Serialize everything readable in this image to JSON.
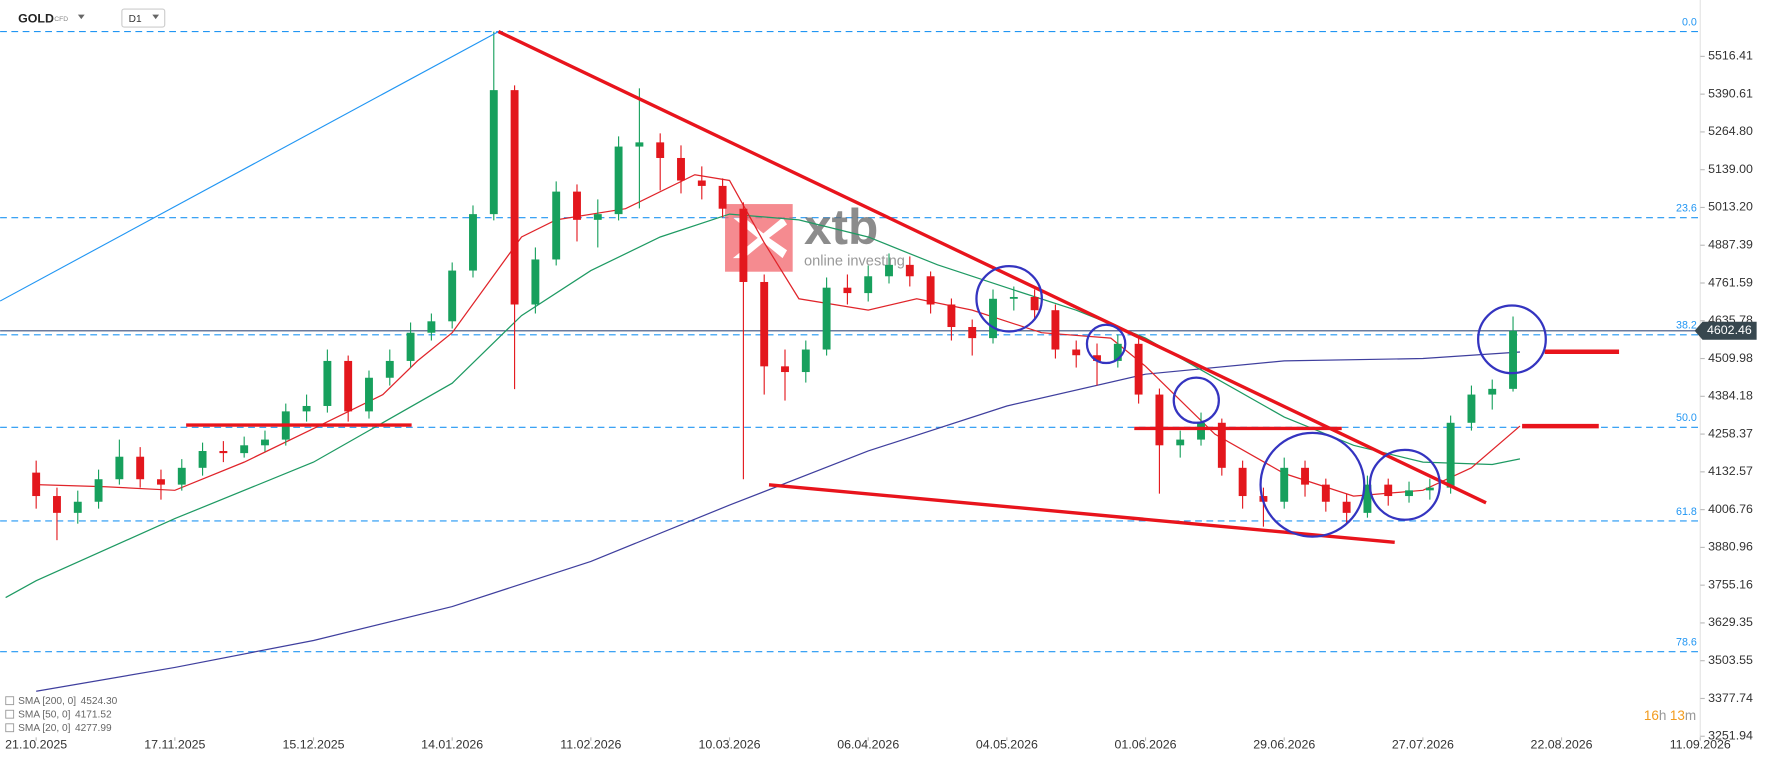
{
  "toolbar": {
    "symbol": "GOLD",
    "badge": "CFD",
    "interval": "D1"
  },
  "watermark": {
    "brand": "xtb",
    "tagline": "online investing"
  },
  "countdown": [
    "16",
    "h",
    "13",
    "m"
  ],
  "chart_data": {
    "type": "candlestick",
    "up_color": "#17a05d",
    "down_color": "#e3171d",
    "x": [
      0,
      3,
      6,
      9,
      12,
      15,
      18,
      21,
      24,
      27,
      30,
      33,
      36,
      39,
      42,
      45,
      48,
      51,
      54,
      57,
      60,
      63,
      66,
      69,
      72,
      75,
      78,
      81,
      84,
      87,
      90,
      93,
      96,
      99,
      102,
      105,
      108,
      111,
      114,
      117,
      120,
      123,
      126,
      129,
      132,
      135,
      138,
      141,
      144,
      147,
      150,
      153,
      156,
      159,
      162,
      165,
      168,
      171,
      174,
      177,
      180,
      183,
      186,
      189,
      192,
      195,
      198,
      201,
      204,
      207,
      210,
      213
    ],
    "open": [
      4130,
      4052,
      3996,
      4033,
      4108,
      4183,
      4108,
      4090,
      4146,
      4202,
      4195,
      4221,
      4240,
      4334,
      4352,
      4502,
      4334,
      4446,
      4502,
      4596,
      4634,
      4803,
      4991,
      5404,
      4690,
      4840,
      5066,
      4972,
      4991,
      5216,
      5230,
      5178,
      5103,
      5085,
      5009,
      4765,
      4484,
      4465,
      4540,
      4746,
      4728,
      4784,
      4822,
      4784,
      4690,
      4615,
      4578,
      4709,
      4715,
      4671,
      4540,
      4521,
      4502,
      4559,
      4390,
      4221,
      4240,
      4296,
      4146,
      4052,
      4033,
      4146,
      4090,
      4033,
      3996,
      4090,
      4052,
      4071,
      4080,
      4296,
      4390,
      4409
    ],
    "high": [
      4170,
      4080,
      4070,
      4140,
      4240,
      4215,
      4140,
      4175,
      4230,
      4235,
      4250,
      4270,
      4360,
      4390,
      4540,
      4520,
      4470,
      4540,
      4630,
      4660,
      4830,
      5020,
      5599,
      5420,
      4880,
      5100,
      5090,
      5040,
      5250,
      5410,
      5260,
      5220,
      5150,
      5110,
      5030,
      4790,
      4540,
      4570,
      4780,
      4790,
      4820,
      4860,
      4850,
      4800,
      4710,
      4640,
      4740,
      4750,
      4740,
      4690,
      4570,
      4560,
      4590,
      4580,
      4410,
      4270,
      4330,
      4310,
      4170,
      4080,
      4180,
      4170,
      4110,
      4060,
      4120,
      4110,
      4100,
      4110,
      4320,
      4420,
      4440,
      4650
    ],
    "low": [
      4010,
      3905,
      3960,
      4010,
      4090,
      4080,
      4040,
      4070,
      4120,
      4165,
      4180,
      4200,
      4220,
      4300,
      4330,
      4300,
      4310,
      4420,
      4480,
      4570,
      4610,
      4780,
      4970,
      4408,
      4660,
      4820,
      4900,
      4880,
      4970,
      5010,
      5070,
      5060,
      5040,
      4980,
      4108,
      4390,
      4370,
      4430,
      4520,
      4690,
      4700,
      4760,
      4750,
      4660,
      4570,
      4520,
      4560,
      4670,
      4640,
      4510,
      4480,
      4420,
      4480,
      4360,
      4060,
      4180,
      4220,
      4120,
      4010,
      3950,
      4010,
      4050,
      4000,
      3960,
      3980,
      4020,
      4030,
      4040,
      4060,
      4270,
      4340,
      4400
    ],
    "close": [
      4052,
      3996,
      4033,
      4108,
      4183,
      4108,
      4090,
      4146,
      4202,
      4195,
      4221,
      4240,
      4334,
      4352,
      4502,
      4334,
      4446,
      4502,
      4596,
      4634,
      4803,
      4991,
      5404,
      4690,
      4840,
      5066,
      4972,
      4991,
      5216,
      5230,
      5178,
      5103,
      5085,
      5009,
      4765,
      4484,
      4465,
      4540,
      4746,
      4728,
      4784,
      4822,
      4784,
      4690,
      4615,
      4578,
      4709,
      4715,
      4671,
      4540,
      4521,
      4502,
      4559,
      4390,
      4221,
      4240,
      4296,
      4146,
      4052,
      4033,
      4146,
      4090,
      4033,
      3996,
      4090,
      4052,
      4071,
      4080,
      4296,
      4390,
      4409,
      4602.46
    ],
    "series": [
      {
        "name": "SMA [200, 0]",
        "legend_value": "4524.30",
        "color": "#3f3f9e",
        "x": [
          0,
          20,
          40,
          60,
          80,
          100,
          120,
          140,
          160,
          180,
          200,
          214
        ],
        "values": [
          3402,
          3481,
          3571,
          3684,
          3834,
          4022,
          4202,
          4352,
          4458,
          4502,
          4510,
          4532
        ]
      },
      {
        "name": "SMA [50, 0]",
        "legend_value": "4171.52",
        "color": "#1e9a63",
        "x": [
          -4.4,
          0,
          20,
          40,
          60,
          70,
          80,
          90,
          100,
          110,
          120,
          130,
          140,
          150,
          160,
          170,
          180,
          190,
          200,
          210,
          214
        ],
        "values": [
          3714,
          3770,
          3977,
          4165,
          4428,
          4653,
          4803,
          4915,
          4991,
          4972,
          4915,
          4822,
          4746,
          4671,
          4578,
          4446,
          4315,
          4221,
          4165,
          4157,
          4176
        ]
      },
      {
        "name": "SMA [20, 0]",
        "legend_value": "4277.99",
        "color": "#e0242a",
        "x": [
          0,
          10,
          20,
          30,
          40,
          50,
          55,
          60,
          70,
          75,
          85,
          95,
          100,
          105,
          110,
          120,
          127,
          135,
          145,
          155,
          160,
          170,
          180,
          190,
          200,
          207,
          214
        ],
        "values": [
          4090,
          4083,
          4071,
          4165,
          4277,
          4390,
          4502,
          4596,
          4915,
          4972,
          5009,
          5122,
          5103,
          4896,
          4709,
          4671,
          4709,
          4671,
          4596,
          4578,
          4484,
          4258,
          4127,
          4052,
          4071,
          4146,
          4285
        ]
      }
    ],
    "fib_levels": [
      {
        "label": "0.0",
        "price": 5599
      },
      {
        "label": "23.6",
        "price": 4979
      },
      {
        "label": "38.2",
        "price": 4589
      },
      {
        "label": "50.0",
        "price": 4281
      },
      {
        "label": "61.8",
        "price": 3969
      },
      {
        "label": "78.6",
        "price": 3533.5
      }
    ],
    "last_price": 4602.46,
    "xlim": [
      -5.2,
      240
    ],
    "xticks": [
      {
        "value": 0,
        "label": "21.10.2025"
      },
      {
        "value": 20,
        "label": "17.11.2025"
      },
      {
        "value": 40,
        "label": "15.12.2025"
      },
      {
        "value": 60,
        "label": "14.01.2026"
      },
      {
        "value": 80,
        "label": "11.02.2026"
      },
      {
        "value": 100,
        "label": "10.03.2026"
      },
      {
        "value": 120,
        "label": "06.04.2026"
      },
      {
        "value": 140,
        "label": "04.05.2026"
      },
      {
        "value": 160,
        "label": "01.06.2026"
      },
      {
        "value": 180,
        "label": "29.06.2026"
      },
      {
        "value": 200,
        "label": "27.07.2026"
      },
      {
        "value": 220,
        "label": "22.08.2026"
      },
      {
        "value": 240,
        "label": "11.09.2026"
      }
    ],
    "ylim": [
      3250.6,
      5704.2
    ],
    "yticks": [
      5516.41,
      5390.61,
      {
        "value": 5264.8,
        "label": "5264.80"
      },
      {
        "value": 5139,
        "label": "5139.00"
      },
      {
        "value": 5013.2,
        "label": "5013.20"
      },
      4887.39,
      4761.59,
      4635.78,
      4509.98,
      4384.18,
      4258.37,
      4132.57,
      4006.76,
      3880.96,
      3755.16,
      3629.35,
      3503.55,
      3377.74,
      3251.94
    ]
  }
}
